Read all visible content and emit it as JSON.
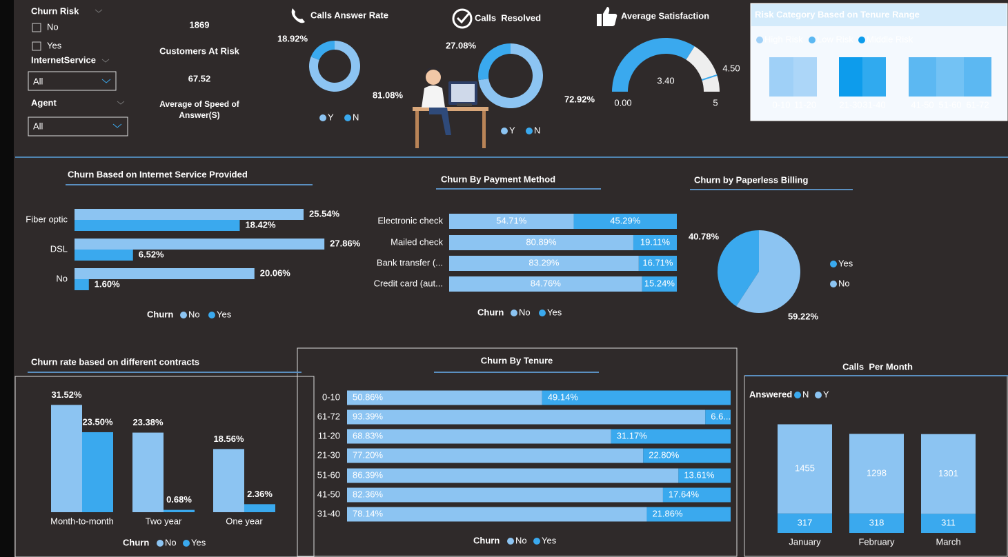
{
  "filters": [
    {
      "label": "Churn Risk",
      "options": [
        "No",
        "Yes"
      ]
    },
    {
      "label": "InternetService",
      "value": "All"
    },
    {
      "label": "Agent",
      "value": "All"
    }
  ],
  "kpis": [
    {
      "value": 1869,
      "label": "Customers At Risk"
    },
    {
      "value": 67.52,
      "label": "Average of Speed of Answer(S)"
    }
  ],
  "chart_data": [
    {
      "type": "donut",
      "title": "Calls Answer Rate",
      "categories": [
        "Y",
        "N"
      ],
      "values": [
        81.08,
        18.92
      ],
      "value_labels": [
        "81.08%",
        "18.92%"
      ],
      "colors": [
        "#8cc4f2",
        "#3aa9ee"
      ]
    },
    {
      "type": "donut",
      "title": "Calls  Resolved",
      "categories": [
        "Y",
        "N"
      ],
      "values": [
        72.92,
        27.08
      ],
      "value_labels": [
        "72.92%",
        "27.08%"
      ],
      "colors": [
        "#8cc4f2",
        "#3aa9ee"
      ]
    },
    {
      "type": "gauge",
      "title": "Average Satisfaction",
      "value": 3.4,
      "value_label": "3.40",
      "target": 4.5,
      "target_label": "4.50",
      "ylim": [
        0,
        5
      ],
      "yticks": [
        {
          "value": 0,
          "label": "0.00"
        },
        5
      ],
      "color": "#3aa9ee",
      "track_color": "#eeeeee"
    },
    {
      "type": "category-strip",
      "title": "Risk Category Based on Tenure Range",
      "categories": [
        "0-10",
        "11-20",
        "21-30",
        "31-40",
        "41-50",
        "51-60",
        "61-72"
      ],
      "series": [
        {
          "name": "High Risk",
          "color": "#9fd0f7",
          "members": [
            0,
            1
          ]
        },
        {
          "name": "Low Risk",
          "color": "#5cb8f2",
          "members": [
            4,
            5,
            6
          ]
        },
        {
          "name": "Middle Risk",
          "color": "#0d9cec",
          "members": [
            2,
            3
          ]
        }
      ]
    },
    {
      "type": "bar",
      "orientation": "horizontal",
      "title": "Churn Based on Internet Service Provided",
      "legend_title": "Churn",
      "categories": [
        "Fiber optic",
        "DSL",
        "No"
      ],
      "xlim": [
        0,
        28.5
      ],
      "series": [
        {
          "name": "No",
          "color": "#8cc4f2",
          "values": [
            25.54,
            27.86,
            20.06
          ],
          "value_labels": [
            "25.54%",
            "27.86%",
            "20.06%"
          ]
        },
        {
          "name": "Yes",
          "color": "#3aa9ee",
          "values": [
            18.42,
            6.52,
            1.6
          ],
          "value_labels": [
            "18.42%",
            "6.52%",
            "1.60%"
          ]
        }
      ]
    },
    {
      "type": "stacked-bar",
      "orientation": "horizontal",
      "title": "Churn By Payment Method",
      "legend_title": "Churn",
      "categories": [
        "Electronic check",
        "Mailed check",
        "Bank transfer (...",
        "Credit card (aut..."
      ],
      "xlim": [
        0,
        100
      ],
      "series": [
        {
          "name": "No",
          "color": "#8cc4f2",
          "values": [
            54.71,
            80.89,
            83.29,
            84.76
          ],
          "value_labels": [
            "54.71%",
            "80.89%",
            "83.29%",
            "84.76%"
          ]
        },
        {
          "name": "Yes",
          "color": "#3aa9ee",
          "values": [
            45.29,
            19.11,
            16.71,
            15.24
          ],
          "value_labels": [
            "45.29%",
            "19.11%",
            "16.71%",
            "15.24%"
          ]
        }
      ]
    },
    {
      "type": "pie",
      "title": "Churn by Paperless Billing",
      "categories": [
        "Yes",
        "No"
      ],
      "values": [
        40.78,
        59.22
      ],
      "value_labels": [
        "40.78%",
        "59.22%"
      ],
      "colors": [
        "#3aa9ee",
        "#8cc4f2"
      ]
    },
    {
      "type": "bar",
      "orientation": "vertical",
      "title": "Churn rate based on different contracts",
      "legend_title": "Churn",
      "categories": [
        "Month-to-month",
        "Two year",
        "One year"
      ],
      "ylim": [
        0,
        32
      ],
      "series": [
        {
          "name": "No",
          "color": "#8cc4f2",
          "values": [
            31.52,
            23.38,
            18.56
          ],
          "value_labels": [
            "31.52%",
            "23.38%",
            "18.56%"
          ]
        },
        {
          "name": "Yes",
          "color": "#3aa9ee",
          "values": [
            23.5,
            0.68,
            2.36
          ],
          "value_labels": [
            "23.50%",
            "0.68%",
            "2.36%"
          ]
        }
      ]
    },
    {
      "type": "stacked-bar",
      "orientation": "horizontal",
      "title": "Churn By Tenure",
      "legend_title": "Churn",
      "categories": [
        "0-10",
        "61-72",
        "11-20",
        "21-30",
        "51-60",
        "41-50",
        "31-40"
      ],
      "xlim": [
        0,
        100
      ],
      "series": [
        {
          "name": "No",
          "color": "#8cc4f2",
          "values": [
            50.86,
            93.39,
            68.83,
            77.2,
            86.39,
            82.36,
            78.14
          ],
          "value_labels": [
            "50.86%",
            "93.39%",
            "68.83%",
            "77.20%",
            "86.39%",
            "82.36%",
            "78.14%"
          ]
        },
        {
          "name": "Yes",
          "color": "#3aa9ee",
          "values": [
            49.14,
            6.61,
            31.17,
            22.8,
            13.61,
            17.64,
            21.86
          ],
          "value_labels": [
            "49.14%",
            "6.6...",
            "31.17%",
            "22.80%",
            "13.61%",
            "17.64%",
            "21.86%"
          ]
        }
      ]
    },
    {
      "type": "stacked-bar",
      "orientation": "vertical",
      "title": "Calls  Per Month",
      "legend_title": "Answered",
      "categories": [
        "January",
        "February",
        "March"
      ],
      "ylim": [
        0,
        1800
      ],
      "series": [
        {
          "name": "N",
          "color": "#3aa9ee",
          "values": [
            317,
            318,
            311
          ]
        },
        {
          "name": "Y",
          "color": "#8cc4f2",
          "values": [
            1455,
            1298,
            1301
          ]
        }
      ]
    }
  ]
}
